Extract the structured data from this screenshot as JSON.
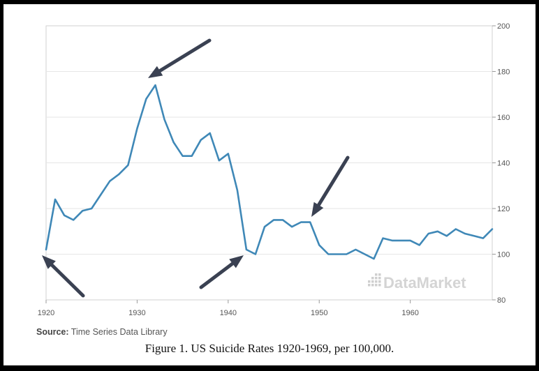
{
  "chart_data": {
    "type": "line",
    "title": "",
    "xlabel": "",
    "ylabel": "",
    "xlim": [
      1920,
      1969
    ],
    "ylim": [
      80,
      200
    ],
    "x_ticks": [
      1920,
      1930,
      1940,
      1950,
      1960
    ],
    "y_ticks": [
      80,
      100,
      120,
      140,
      160,
      180,
      200
    ],
    "y_axis_side": "right",
    "grid": "horizontal",
    "legend": "none",
    "series_color": "#3f88b7",
    "series": [
      {
        "x": [
          1920,
          1921,
          1922,
          1923,
          1924,
          1925,
          1926,
          1927,
          1928,
          1929,
          1930,
          1931,
          1932,
          1933,
          1934,
          1935,
          1936,
          1937,
          1938,
          1939,
          1940,
          1941,
          1942,
          1943,
          1944,
          1945,
          1946,
          1947,
          1948,
          1949,
          1950,
          1951,
          1952,
          1953,
          1954,
          1955,
          1956,
          1957,
          1958,
          1959,
          1960,
          1961,
          1962,
          1963,
          1964,
          1965,
          1966,
          1967,
          1968,
          1969
        ],
        "y": [
          102,
          124,
          117,
          115,
          119,
          120,
          126,
          132,
          135,
          139,
          155,
          168,
          174,
          159,
          149,
          143,
          143,
          150,
          153,
          141,
          144,
          128,
          102,
          100,
          112,
          115,
          115,
          112,
          114,
          114,
          104,
          100,
          100,
          100,
          102,
          100,
          98,
          107,
          106,
          106,
          106,
          104,
          109,
          110,
          108,
          111,
          109,
          108,
          107,
          111
        ]
      }
    ],
    "watermark": "DataMarket"
  },
  "source": {
    "label": "Source:",
    "text": "Time Series Data Library"
  },
  "caption": "Figure 1. US Suicide Rates 1920-1969, per 100,000.",
  "annotation_arrow_color": "#3a4152"
}
